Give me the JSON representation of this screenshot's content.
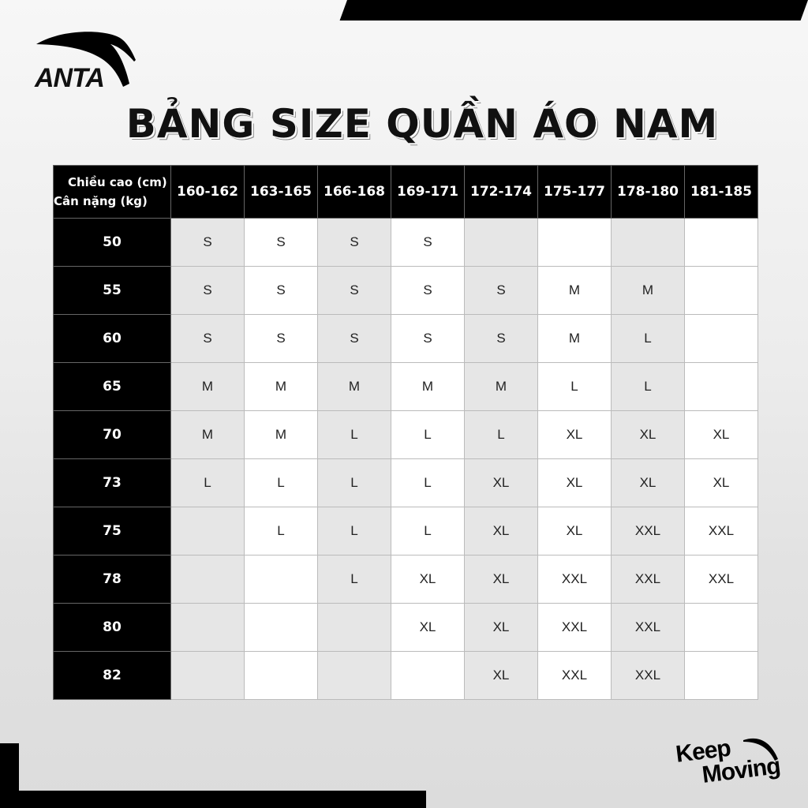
{
  "brand": {
    "logo_text": "ANTA",
    "slogan_line1": "Keep",
    "slogan_line2": "Moving"
  },
  "title": "BẢNG SIZE QUẦN ÁO NAM",
  "table": {
    "corner_line1": "Chiều cao (cm)",
    "corner_line2": "Cân nặng (kg)",
    "heights": [
      "160-162",
      "163-165",
      "166-168",
      "169-171",
      "172-174",
      "175-177",
      "178-180",
      "181-185"
    ],
    "rows": [
      {
        "weight": "50",
        "sizes": [
          "S",
          "S",
          "S",
          "S",
          "",
          "",
          "",
          ""
        ]
      },
      {
        "weight": "55",
        "sizes": [
          "S",
          "S",
          "S",
          "S",
          "S",
          "M",
          "M",
          ""
        ]
      },
      {
        "weight": "60",
        "sizes": [
          "S",
          "S",
          "S",
          "S",
          "S",
          "M",
          "L",
          ""
        ]
      },
      {
        "weight": "65",
        "sizes": [
          "M",
          "M",
          "M",
          "M",
          "M",
          "L",
          "L",
          ""
        ]
      },
      {
        "weight": "70",
        "sizes": [
          "M",
          "M",
          "L",
          "L",
          "L",
          "XL",
          "XL",
          "XL"
        ]
      },
      {
        "weight": "73",
        "sizes": [
          "L",
          "L",
          "L",
          "L",
          "XL",
          "XL",
          "XL",
          "XL"
        ]
      },
      {
        "weight": "75",
        "sizes": [
          "",
          "L",
          "L",
          "L",
          "XL",
          "XL",
          "XXL",
          "XXL"
        ]
      },
      {
        "weight": "78",
        "sizes": [
          "",
          "",
          "L",
          "XL",
          "XL",
          "XXL",
          "XXL",
          "XXL"
        ]
      },
      {
        "weight": "80",
        "sizes": [
          "",
          "",
          "",
          "XL",
          "XL",
          "XXL",
          "XXL",
          ""
        ]
      },
      {
        "weight": "82",
        "sizes": [
          "",
          "",
          "",
          "",
          "XL",
          "XXL",
          "XXL",
          ""
        ]
      }
    ]
  }
}
